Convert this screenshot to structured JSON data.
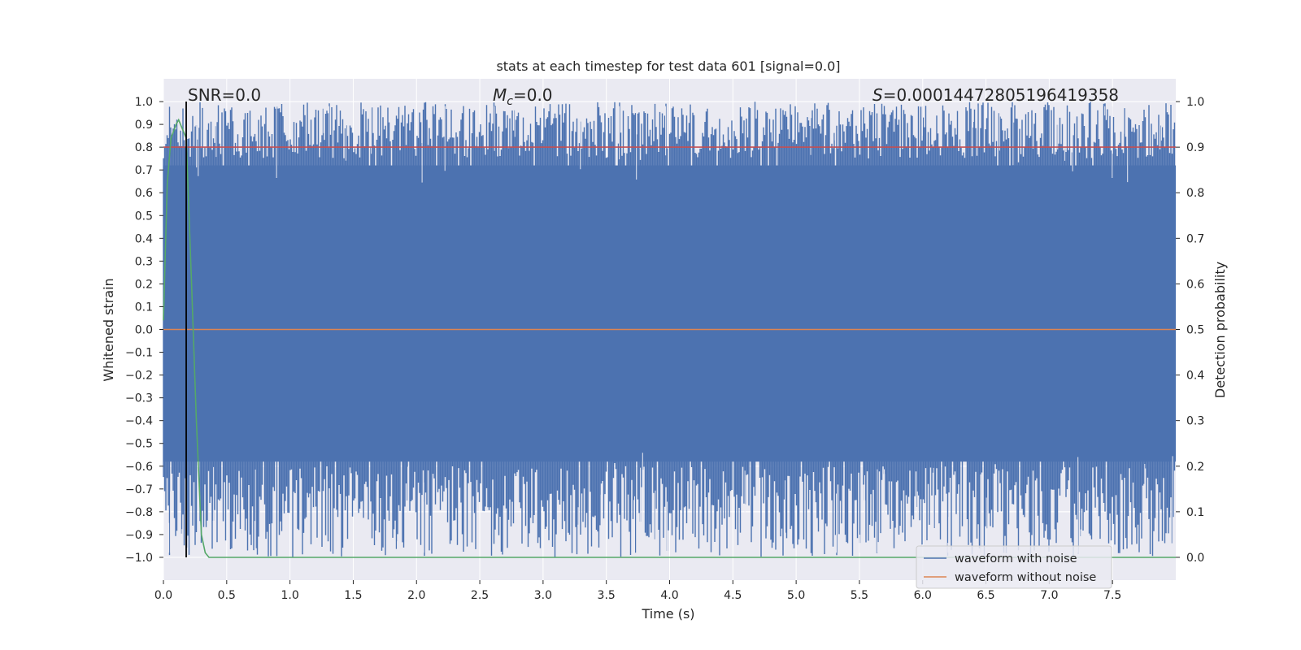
{
  "chart_data": {
    "type": "line",
    "title": "stats at each timestep for test data 601 [signal=0.0]",
    "xlabel": "Time (s)",
    "ylabel_left": "Whitened strain",
    "ylabel_right": "Detection probability",
    "xlim": [
      0.0,
      8.0
    ],
    "ylim_left": [
      -1.1,
      1.1
    ],
    "ylim_right": [
      -0.05,
      1.05
    ],
    "x_ticks": [
      "0.0",
      "0.5",
      "1.0",
      "1.5",
      "2.0",
      "2.5",
      "3.0",
      "3.5",
      "4.0",
      "4.5",
      "5.0",
      "5.5",
      "6.0",
      "6.5",
      "7.0",
      "7.5"
    ],
    "y_ticks_left": [
      "1.0",
      "0.9",
      "0.8",
      "0.7",
      "0.6",
      "0.5",
      "0.4",
      "0.3",
      "0.2",
      "0.1",
      "0.0",
      "−0.1",
      "−0.2",
      "−0.3",
      "−0.4",
      "−0.5",
      "−0.6",
      "−0.7",
      "−0.8",
      "−0.9",
      "−1.0"
    ],
    "y_ticks_right": [
      "1.0",
      "0.9",
      "0.8",
      "0.7",
      "0.6",
      "0.5",
      "0.4",
      "0.3",
      "0.2",
      "0.1",
      "0.0"
    ],
    "grid": true,
    "annotations": {
      "snr_text": "SNR=0.0",
      "mc_symbol": "M",
      "mc_subscript": "c",
      "mc_value": "=0.0",
      "s_symbol": "S",
      "s_value": "=0.00014472805196419358"
    },
    "marker_time": 0.18,
    "series": [
      {
        "name": "waveform with noise",
        "axis": "left",
        "color": "#4c72b0",
        "range": [
          -1.0,
          1.0
        ],
        "description_hint": "dense whitened noise filling the band"
      },
      {
        "name": "waveform without noise",
        "axis": "left",
        "color": "#dd8452",
        "x": [
          0.0,
          8.0
        ],
        "y": [
          0.0,
          0.0
        ]
      },
      {
        "axis": "right",
        "color": "#c44e52",
        "x": [
          0.0,
          8.0
        ],
        "y": [
          0.9,
          0.9
        ]
      },
      {
        "axis": "right",
        "color": "#55a868",
        "x": [
          0.0,
          0.03,
          0.06,
          0.1,
          0.12,
          0.15,
          0.18,
          0.22,
          0.26,
          0.3,
          0.33,
          0.36,
          0.4,
          1.0,
          2.0,
          3.0,
          4.0,
          5.0,
          6.0,
          7.0,
          8.0
        ],
        "y": [
          0.52,
          0.82,
          0.92,
          0.95,
          0.96,
          0.94,
          0.92,
          0.62,
          0.3,
          0.05,
          0.01,
          0.0,
          0.0,
          0.0,
          0.0,
          0.0,
          0.0,
          0.0,
          0.0,
          0.0,
          0.0
        ]
      }
    ],
    "legend": {
      "placement": "lower-right",
      "entries": [
        {
          "label": "waveform with noise",
          "color": "#4c72b0"
        },
        {
          "label": "waveform without noise",
          "color": "#dd8452"
        }
      ]
    },
    "colors": {
      "plot_background": "#eaeaf2",
      "grid": "#ffffff",
      "marker_line": "#000000"
    }
  }
}
